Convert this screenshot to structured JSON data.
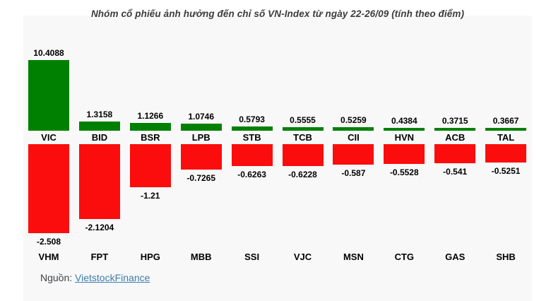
{
  "page": {
    "background": "#ffffff"
  },
  "chart": {
    "source_label": "Nguồn:",
    "source_link": "VietstockFinance",
    "colors": {
      "positive": "#008000",
      "negative": "#fb0d0d",
      "chart_background": "#f8f8f8",
      "title_text": "#3b3b3b",
      "label_text": "#000000",
      "source_text": "#3f4346",
      "link_text": "#3f7cae"
    }
  },
  "chart_data": {
    "type": "bar",
    "title": "Nhóm cổ phiếu ảnh hưởng đến chỉ số VN-Index từ ngày 22-26/09 (tính theo điểm)",
    "value_labels": true,
    "grid": false,
    "legend": false,
    "positive": {
      "categories": [
        "VIC",
        "BID",
        "BSR",
        "LPB",
        "STB",
        "TCB",
        "CII",
        "HVN",
        "ACB",
        "TAL"
      ],
      "values": [
        10.4088,
        1.3158,
        1.1266,
        1.0746,
        0.5793,
        0.5555,
        0.5259,
        0.4384,
        0.3715,
        0.3667
      ]
    },
    "negative": {
      "categories": [
        "VHM",
        "FPT",
        "HPG",
        "MBB",
        "SSI",
        "VJC",
        "MSN",
        "CTG",
        "GAS",
        "SHB"
      ],
      "values": [
        -2.508,
        -2.1204,
        -1.21,
        -0.7265,
        -0.6263,
        -0.6228,
        -0.587,
        -0.5528,
        -0.541,
        -0.5251
      ]
    }
  }
}
